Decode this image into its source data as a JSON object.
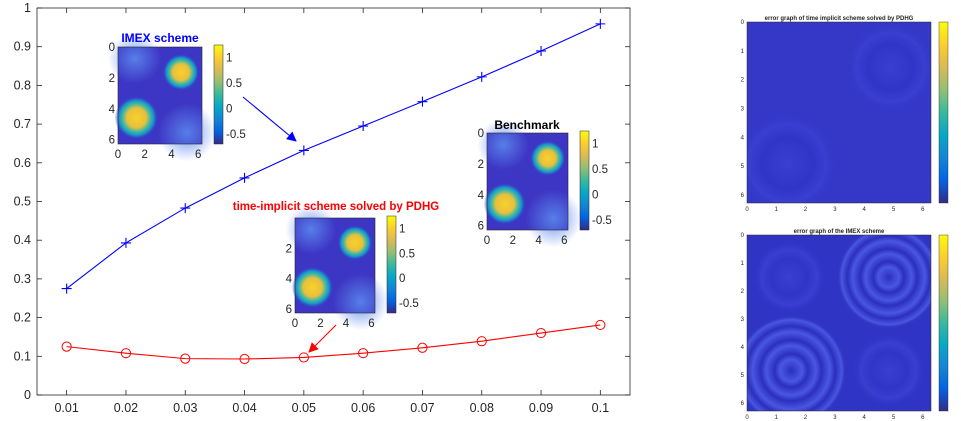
{
  "colors": {
    "blue": "#0000ff",
    "red": "#ff0000",
    "axis": "#262626",
    "parula": [
      "#352a87",
      "#0363e1",
      "#1485d4",
      "#06a7c6",
      "#38b99e",
      "#92bf73",
      "#d9ba56",
      "#fcce2e",
      "#f9fb0e"
    ]
  },
  "chart_data": [
    {
      "type": "line",
      "title": "",
      "xlabel": "",
      "ylabel": "",
      "x": [
        0.01,
        0.02,
        0.03,
        0.04,
        0.05,
        0.06,
        0.07,
        0.08,
        0.09,
        0.1
      ],
      "xlim": [
        0.005,
        0.105
      ],
      "ylim": [
        0,
        1
      ],
      "x_ticks": [
        "0.01",
        "0.02",
        "0.03",
        "0.04",
        "0.05",
        "0.06",
        "0.07",
        "0.08",
        "0.09",
        "0.1"
      ],
      "y_ticks": [
        "0",
        "0.1",
        "0.2",
        "0.3",
        "0.4",
        "0.5",
        "0.6",
        "0.7",
        "0.8",
        "0.9",
        "1"
      ],
      "grid": false,
      "series": [
        {
          "marker": "plus",
          "color": "#0000ff",
          "values": [
            0.275,
            0.393,
            0.483,
            0.561,
            0.632,
            0.695,
            0.758,
            0.822,
            0.889,
            0.959
          ]
        },
        {
          "marker": "circle",
          "color": "#ff0000",
          "values": [
            0.125,
            0.108,
            0.094,
            0.093,
            0.097,
            0.108,
            0.122,
            0.139,
            0.16,
            0.181
          ]
        }
      ],
      "annotations": [
        {
          "label": "IMEX scheme",
          "color": "#0000ff",
          "points_to": {
            "x": 0.05,
            "y": 0.632
          }
        },
        {
          "label": "time-implicit scheme solved by PDHG",
          "color": "#ff0000",
          "points_to": {
            "x": 0.05,
            "y": 0.097
          }
        },
        {
          "label": "Benchmark",
          "color": "#000000"
        }
      ]
    },
    {
      "type": "heatmap",
      "title": "IMEX scheme",
      "x_ticks": [
        "0",
        "2",
        "4",
        "6"
      ],
      "y_ticks": [
        "0",
        "2",
        "4",
        "6"
      ],
      "colorbar_ticks": [
        "1",
        "0.5",
        "0",
        "-0.5"
      ],
      "clim": [
        -0.7,
        1.25
      ]
    },
    {
      "type": "heatmap",
      "title": "time-implicit scheme solved by PDHG",
      "x_ticks": [
        "0",
        "2",
        "4",
        "6"
      ],
      "y_ticks": [
        "2",
        "4",
        "6"
      ],
      "colorbar_ticks": [
        "1",
        "0.5",
        "0",
        "-0.5"
      ],
      "clim": [
        -0.7,
        1.25
      ]
    },
    {
      "type": "heatmap",
      "title": "Benchmark",
      "x_ticks": [
        "0",
        "2",
        "4",
        "6"
      ],
      "y_ticks": [
        "0",
        "2",
        "4",
        "6"
      ],
      "colorbar_ticks": [
        "1",
        "0.5",
        "0",
        "-0.5"
      ],
      "clim": [
        -0.7,
        1.25
      ]
    },
    {
      "type": "heatmap",
      "title": "error graph of time implicit scheme solved by PDHG",
      "x_ticks": [
        "0",
        "1",
        "2",
        "3",
        "4",
        "5",
        "6"
      ],
      "y_ticks": [
        "0",
        "1",
        "2",
        "3",
        "4",
        "5",
        "6"
      ],
      "colorbar_ticks": []
    },
    {
      "type": "heatmap",
      "title": "error graph of the IMEX scheme",
      "x_ticks": [
        "0",
        "1",
        "2",
        "3",
        "4",
        "5",
        "6"
      ],
      "y_ticks": [
        "0",
        "1",
        "2",
        "3",
        "4",
        "5",
        "6"
      ],
      "colorbar_ticks": []
    }
  ]
}
